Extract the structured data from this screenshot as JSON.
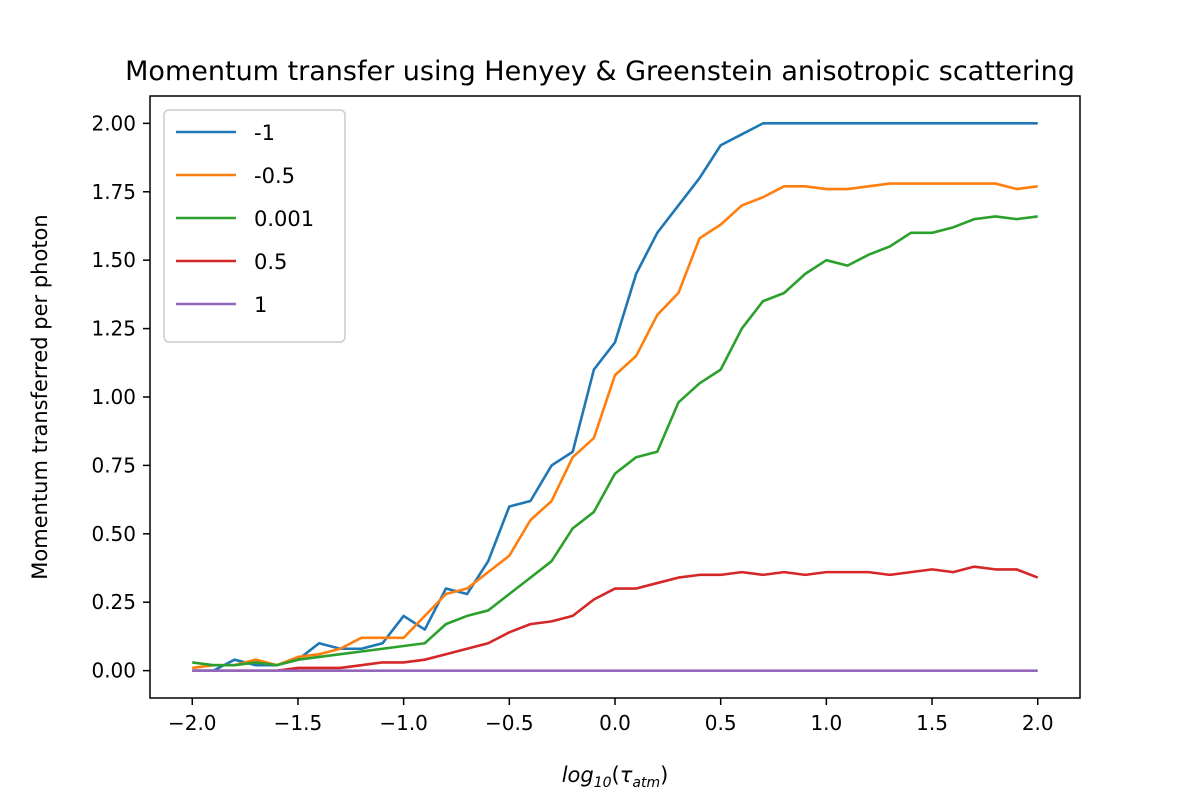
{
  "chart_data": {
    "type": "line",
    "title": "Momentum transfer using Henyey & Greenstein anisotropic scattering",
    "xlabel": {
      "prefix": "log",
      "sub_base": "10",
      "paren_open": "(",
      "tau": "τ",
      "sub_tau": "atm",
      "paren_close": ")"
    },
    "ylabel": "Momentum transferred per photon",
    "xlim": [
      -2.2,
      2.2
    ],
    "ylim": [
      -0.1,
      2.1
    ],
    "xticks": [
      -2.0,
      -1.5,
      -1.0,
      -0.5,
      0.0,
      0.5,
      1.0,
      1.5,
      2.0
    ],
    "xtick_labels": [
      "−2.0",
      "−1.5",
      "−1.0",
      "−0.5",
      "0.0",
      "0.5",
      "1.0",
      "1.5",
      "2.0"
    ],
    "yticks": [
      0.0,
      0.25,
      0.5,
      0.75,
      1.0,
      1.25,
      1.5,
      1.75,
      2.0
    ],
    "ytick_labels": [
      "0.00",
      "0.25",
      "0.50",
      "0.75",
      "1.00",
      "1.25",
      "1.50",
      "1.75",
      "2.00"
    ],
    "grid": false,
    "legend_position": "upper-left",
    "x": [
      -2.0,
      -1.9,
      -1.8,
      -1.7,
      -1.6,
      -1.5,
      -1.4,
      -1.3,
      -1.2,
      -1.1,
      -1.0,
      -0.9,
      -0.8,
      -0.7,
      -0.6,
      -0.5,
      -0.4,
      -0.3,
      -0.2,
      -0.1,
      0.0,
      0.1,
      0.2,
      0.3,
      0.4,
      0.5,
      0.6,
      0.7,
      0.8,
      0.9,
      1.0,
      1.1,
      1.2,
      1.3,
      1.4,
      1.5,
      1.6,
      1.7,
      1.8,
      1.9,
      2.0
    ],
    "series": [
      {
        "name": "-1",
        "color": "#1f77b4",
        "values": [
          0.0,
          0.0,
          0.04,
          0.02,
          0.02,
          0.04,
          0.1,
          0.08,
          0.08,
          0.1,
          0.2,
          0.15,
          0.3,
          0.28,
          0.4,
          0.6,
          0.62,
          0.75,
          0.8,
          1.1,
          1.2,
          1.45,
          1.6,
          1.7,
          1.8,
          1.92,
          1.96,
          2.0,
          2.0,
          2.0,
          2.0,
          2.0,
          2.0,
          2.0,
          2.0,
          2.0,
          2.0,
          2.0,
          2.0,
          2.0,
          2.0
        ]
      },
      {
        "name": "-0.5",
        "color": "#ff7f0e",
        "values": [
          0.01,
          0.02,
          0.02,
          0.04,
          0.02,
          0.05,
          0.06,
          0.08,
          0.12,
          0.12,
          0.12,
          0.2,
          0.28,
          0.3,
          0.36,
          0.42,
          0.55,
          0.62,
          0.78,
          0.85,
          1.08,
          1.15,
          1.3,
          1.38,
          1.58,
          1.63,
          1.7,
          1.73,
          1.77,
          1.77,
          1.76,
          1.76,
          1.77,
          1.78,
          1.78,
          1.78,
          1.78,
          1.78,
          1.78,
          1.76,
          1.77
        ]
      },
      {
        "name": "0.001",
        "color": "#2ca02c",
        "values": [
          0.03,
          0.02,
          0.02,
          0.03,
          0.02,
          0.04,
          0.05,
          0.06,
          0.07,
          0.08,
          0.09,
          0.1,
          0.17,
          0.2,
          0.22,
          0.28,
          0.34,
          0.4,
          0.52,
          0.58,
          0.72,
          0.78,
          0.8,
          0.98,
          1.05,
          1.1,
          1.25,
          1.35,
          1.38,
          1.45,
          1.5,
          1.48,
          1.52,
          1.55,
          1.6,
          1.6,
          1.62,
          1.65,
          1.66,
          1.65,
          1.66
        ]
      },
      {
        "name": "0.5",
        "color": "#d62728",
        "values": [
          0.0,
          0.0,
          0.0,
          0.0,
          0.0,
          0.01,
          0.01,
          0.01,
          0.02,
          0.03,
          0.03,
          0.04,
          0.06,
          0.08,
          0.1,
          0.14,
          0.17,
          0.18,
          0.2,
          0.26,
          0.3,
          0.3,
          0.32,
          0.34,
          0.35,
          0.35,
          0.36,
          0.35,
          0.36,
          0.35,
          0.36,
          0.36,
          0.36,
          0.35,
          0.36,
          0.37,
          0.36,
          0.38,
          0.37,
          0.37,
          0.34
        ]
      },
      {
        "name": "1",
        "color": "#9467bd",
        "values": [
          0.0,
          0.0,
          0.0,
          0.0,
          0.0,
          0.0,
          0.0,
          0.0,
          0.0,
          0.0,
          0.0,
          0.0,
          0.0,
          0.0,
          0.0,
          0.0,
          0.0,
          0.0,
          0.0,
          0.0,
          0.0,
          0.0,
          0.0,
          0.0,
          0.0,
          0.0,
          0.0,
          0.0,
          0.0,
          0.0,
          0.0,
          0.0,
          0.0,
          0.0,
          0.0,
          0.0,
          0.0,
          0.0,
          0.0,
          0.0,
          0.0
        ]
      }
    ]
  }
}
